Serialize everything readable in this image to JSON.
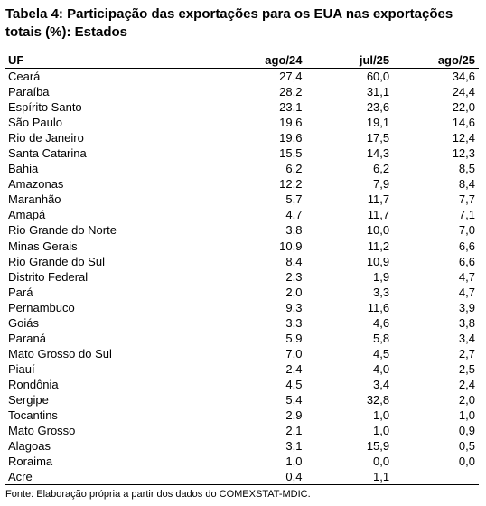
{
  "title": "Tabela 4: Participação das exportações para os EUA nas exportações totais (%): Estados",
  "columns": [
    "UF",
    "ago/24",
    "jul/25",
    "ago/25"
  ],
  "rows": [
    [
      "Ceará",
      "27,4",
      "60,0",
      "34,6"
    ],
    [
      "Paraíba",
      "28,2",
      "31,1",
      "24,4"
    ],
    [
      "Espírito Santo",
      "23,1",
      "23,6",
      "22,0"
    ],
    [
      "São Paulo",
      "19,6",
      "19,1",
      "14,6"
    ],
    [
      "Rio de Janeiro",
      "19,6",
      "17,5",
      "12,4"
    ],
    [
      "Santa Catarina",
      "15,5",
      "14,3",
      "12,3"
    ],
    [
      "Bahia",
      "6,2",
      "6,2",
      "8,5"
    ],
    [
      "Amazonas",
      "12,2",
      "7,9",
      "8,4"
    ],
    [
      "Maranhão",
      "5,7",
      "11,7",
      "7,7"
    ],
    [
      "Amapá",
      "4,7",
      "11,7",
      "7,1"
    ],
    [
      "Rio Grande do Norte",
      "3,8",
      "10,0",
      "7,0"
    ],
    [
      "Minas Gerais",
      "10,9",
      "11,2",
      "6,6"
    ],
    [
      "Rio Grande do Sul",
      "8,4",
      "10,9",
      "6,6"
    ],
    [
      "Distrito Federal",
      "2,3",
      "1,9",
      "4,7"
    ],
    [
      "Pará",
      "2,0",
      "3,3",
      "4,7"
    ],
    [
      "Pernambuco",
      "9,3",
      "11,6",
      "3,9"
    ],
    [
      "Goiás",
      "3,3",
      "4,6",
      "3,8"
    ],
    [
      "Paraná",
      "5,9",
      "5,8",
      "3,4"
    ],
    [
      "Mato Grosso do Sul",
      "7,0",
      "4,5",
      "2,7"
    ],
    [
      "Piauí",
      "2,4",
      "4,0",
      "2,5"
    ],
    [
      "Rondônia",
      "4,5",
      "3,4",
      "2,4"
    ],
    [
      "Sergipe",
      "5,4",
      "32,8",
      "2,0"
    ],
    [
      "Tocantins",
      "2,9",
      "1,0",
      "1,0"
    ],
    [
      "Mato Grosso",
      "2,1",
      "1,0",
      "0,9"
    ],
    [
      "Alagoas",
      "3,1",
      "15,9",
      "0,5"
    ],
    [
      "Roraima",
      "1,0",
      "0,0",
      "0,0"
    ],
    [
      "Acre",
      "0,4",
      "1,1",
      ""
    ]
  ],
  "source": "Fonte: Elaboração própria a partir dos dados do COMEXSTAT-MDIC."
}
